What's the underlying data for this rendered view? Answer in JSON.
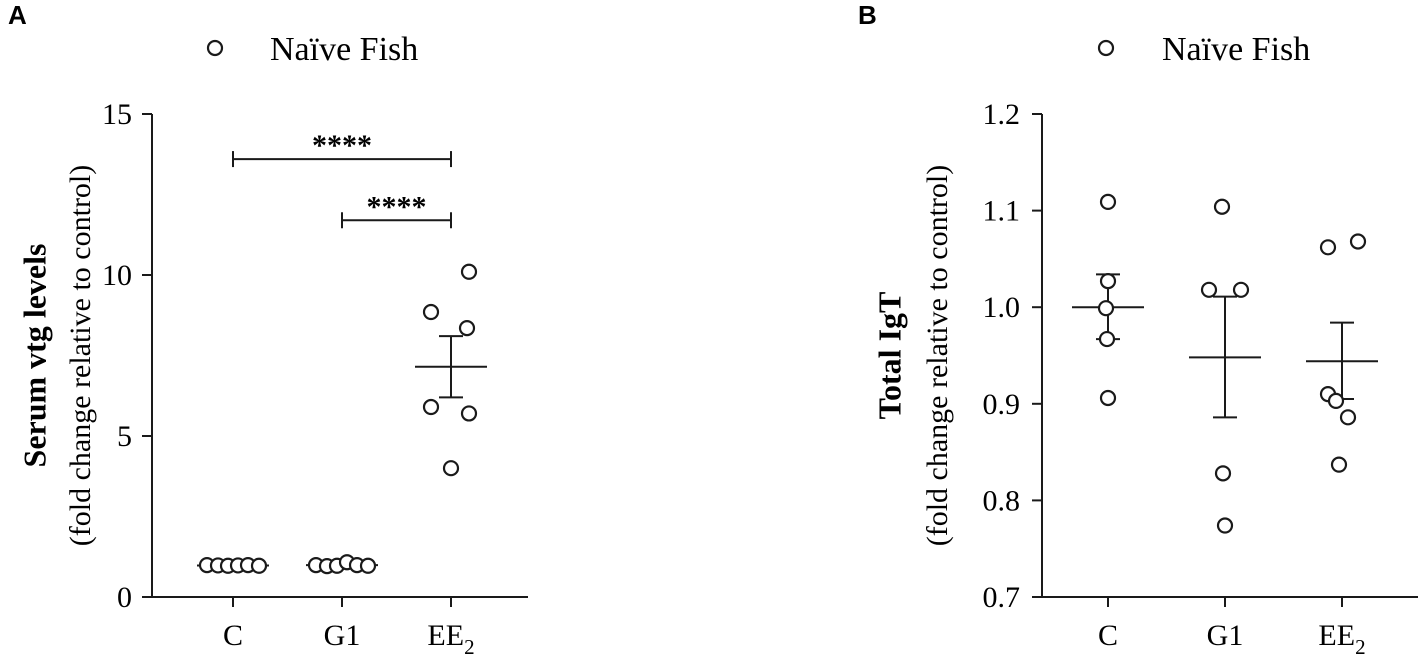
{
  "chart_data": [
    {
      "type": "scatter",
      "panel_label": "A",
      "legend": {
        "label": "Naïve Fish",
        "marker": "open-circle"
      },
      "ylabel_bold": "Serum vtg levels",
      "ylabel_sub": "(fold change relative to control)",
      "ylim": [
        0,
        15
      ],
      "yticks": [
        0,
        5,
        10,
        15
      ],
      "ytick_labels": [
        "0",
        "5",
        "10",
        "15"
      ],
      "categories": [
        {
          "main": "C",
          "sub": ""
        },
        {
          "main": "G1",
          "sub": ""
        },
        {
          "main": "EE",
          "sub": "2"
        }
      ],
      "points": [
        [
          0.99,
          0.98,
          0.97,
          0.98,
          0.99,
          0.97
        ],
        [
          0.99,
          0.96,
          0.97,
          1.08,
          0.99,
          0.97
        ],
        [
          10.1,
          8.85,
          8.35,
          5.9,
          5.7,
          4.0
        ]
      ],
      "mean": [
        0.98,
        0.99,
        7.15
      ],
      "sem_upper": [
        0.98,
        0.99,
        8.1
      ],
      "sem_lower": [
        0.98,
        0.99,
        6.2
      ],
      "significance": [
        {
          "from": 0,
          "to": 2,
          "y": 13.6,
          "label": "****"
        },
        {
          "from": 1,
          "to": 2,
          "y": 11.7,
          "label": "****"
        }
      ]
    },
    {
      "type": "scatter",
      "panel_label": "B",
      "legend": {
        "label": "Naïve Fish",
        "marker": "open-circle"
      },
      "ylabel_bold": "Total IgT",
      "ylabel_sub": "(fold change relative to control)",
      "ylim": [
        0.7,
        1.2
      ],
      "yticks": [
        0.7,
        0.8,
        0.9,
        1.0,
        1.1,
        1.2
      ],
      "ytick_labels": [
        "0.7",
        "0.8",
        "0.9",
        "1.0",
        "1.1",
        "1.2"
      ],
      "categories": [
        {
          "main": "C",
          "sub": ""
        },
        {
          "main": "G1",
          "sub": ""
        },
        {
          "main": "EE",
          "sub": "2"
        }
      ],
      "points": [
        [
          1.109,
          1.027,
          0.999,
          0.967,
          0.906
        ],
        [
          1.104,
          1.018,
          1.018,
          0.828,
          0.774
        ],
        [
          1.062,
          1.068,
          0.91,
          0.903,
          0.886,
          0.837
        ]
      ],
      "mean": [
        1.0,
        0.948,
        0.944
      ],
      "sem_upper": [
        1.034,
        1.011,
        0.984
      ],
      "sem_lower": [
        0.967,
        0.886,
        0.905
      ],
      "significance": []
    }
  ]
}
